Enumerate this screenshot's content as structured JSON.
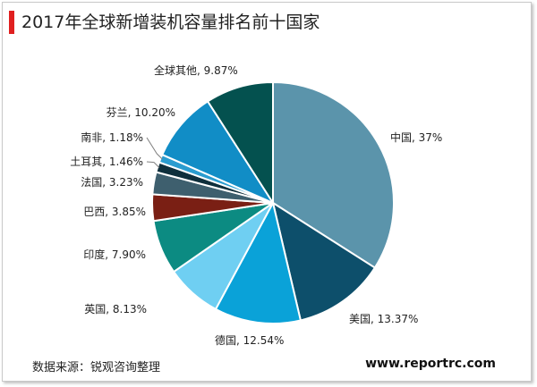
{
  "header": {
    "title": "2017年全球新增装机容量排名前十国家",
    "accent": "#e02020"
  },
  "footer": {
    "source": "数据来源：锐观咨询整理",
    "site": "www.reportrc.com"
  },
  "chart_data": {
    "type": "pie",
    "title": "2017年全球新增装机容量排名前十国家",
    "slices": [
      {
        "name": "中国",
        "label": "中国, 37%",
        "value": 37,
        "color": "#5b94ab"
      },
      {
        "name": "美国",
        "label": "美国, 13.37%",
        "value": 13.37,
        "color": "#0d4f6b"
      },
      {
        "name": "德国",
        "label": "德国, 12.54%",
        "value": 12.54,
        "color": "#0aa2d8"
      },
      {
        "name": "英国",
        "label": "英国, 8.13%",
        "value": 8.13,
        "color": "#6fcff2"
      },
      {
        "name": "印度",
        "label": "印度, 7.90%",
        "value": 7.9,
        "color": "#0c8b82"
      },
      {
        "name": "巴西",
        "label": "巴西, 3.85%",
        "value": 3.85,
        "color": "#7a1f14"
      },
      {
        "name": "法国",
        "label": "法国, 3.23%",
        "value": 3.23,
        "color": "#3e5f6e"
      },
      {
        "name": "土耳其",
        "label": "土耳其, 1.46%",
        "value": 1.46,
        "color": "#0f2f3c"
      },
      {
        "name": "南非",
        "label": "南非, 1.18%",
        "value": 1.18,
        "color": "#2b9ccf"
      },
      {
        "name": "芬兰",
        "label": "芬兰, 10.20%",
        "value": 10.2,
        "color": "#118dc6"
      },
      {
        "name": "全球其他",
        "label": "全球其他, 9.87%",
        "value": 9.87,
        "color": "#04514f"
      }
    ]
  }
}
